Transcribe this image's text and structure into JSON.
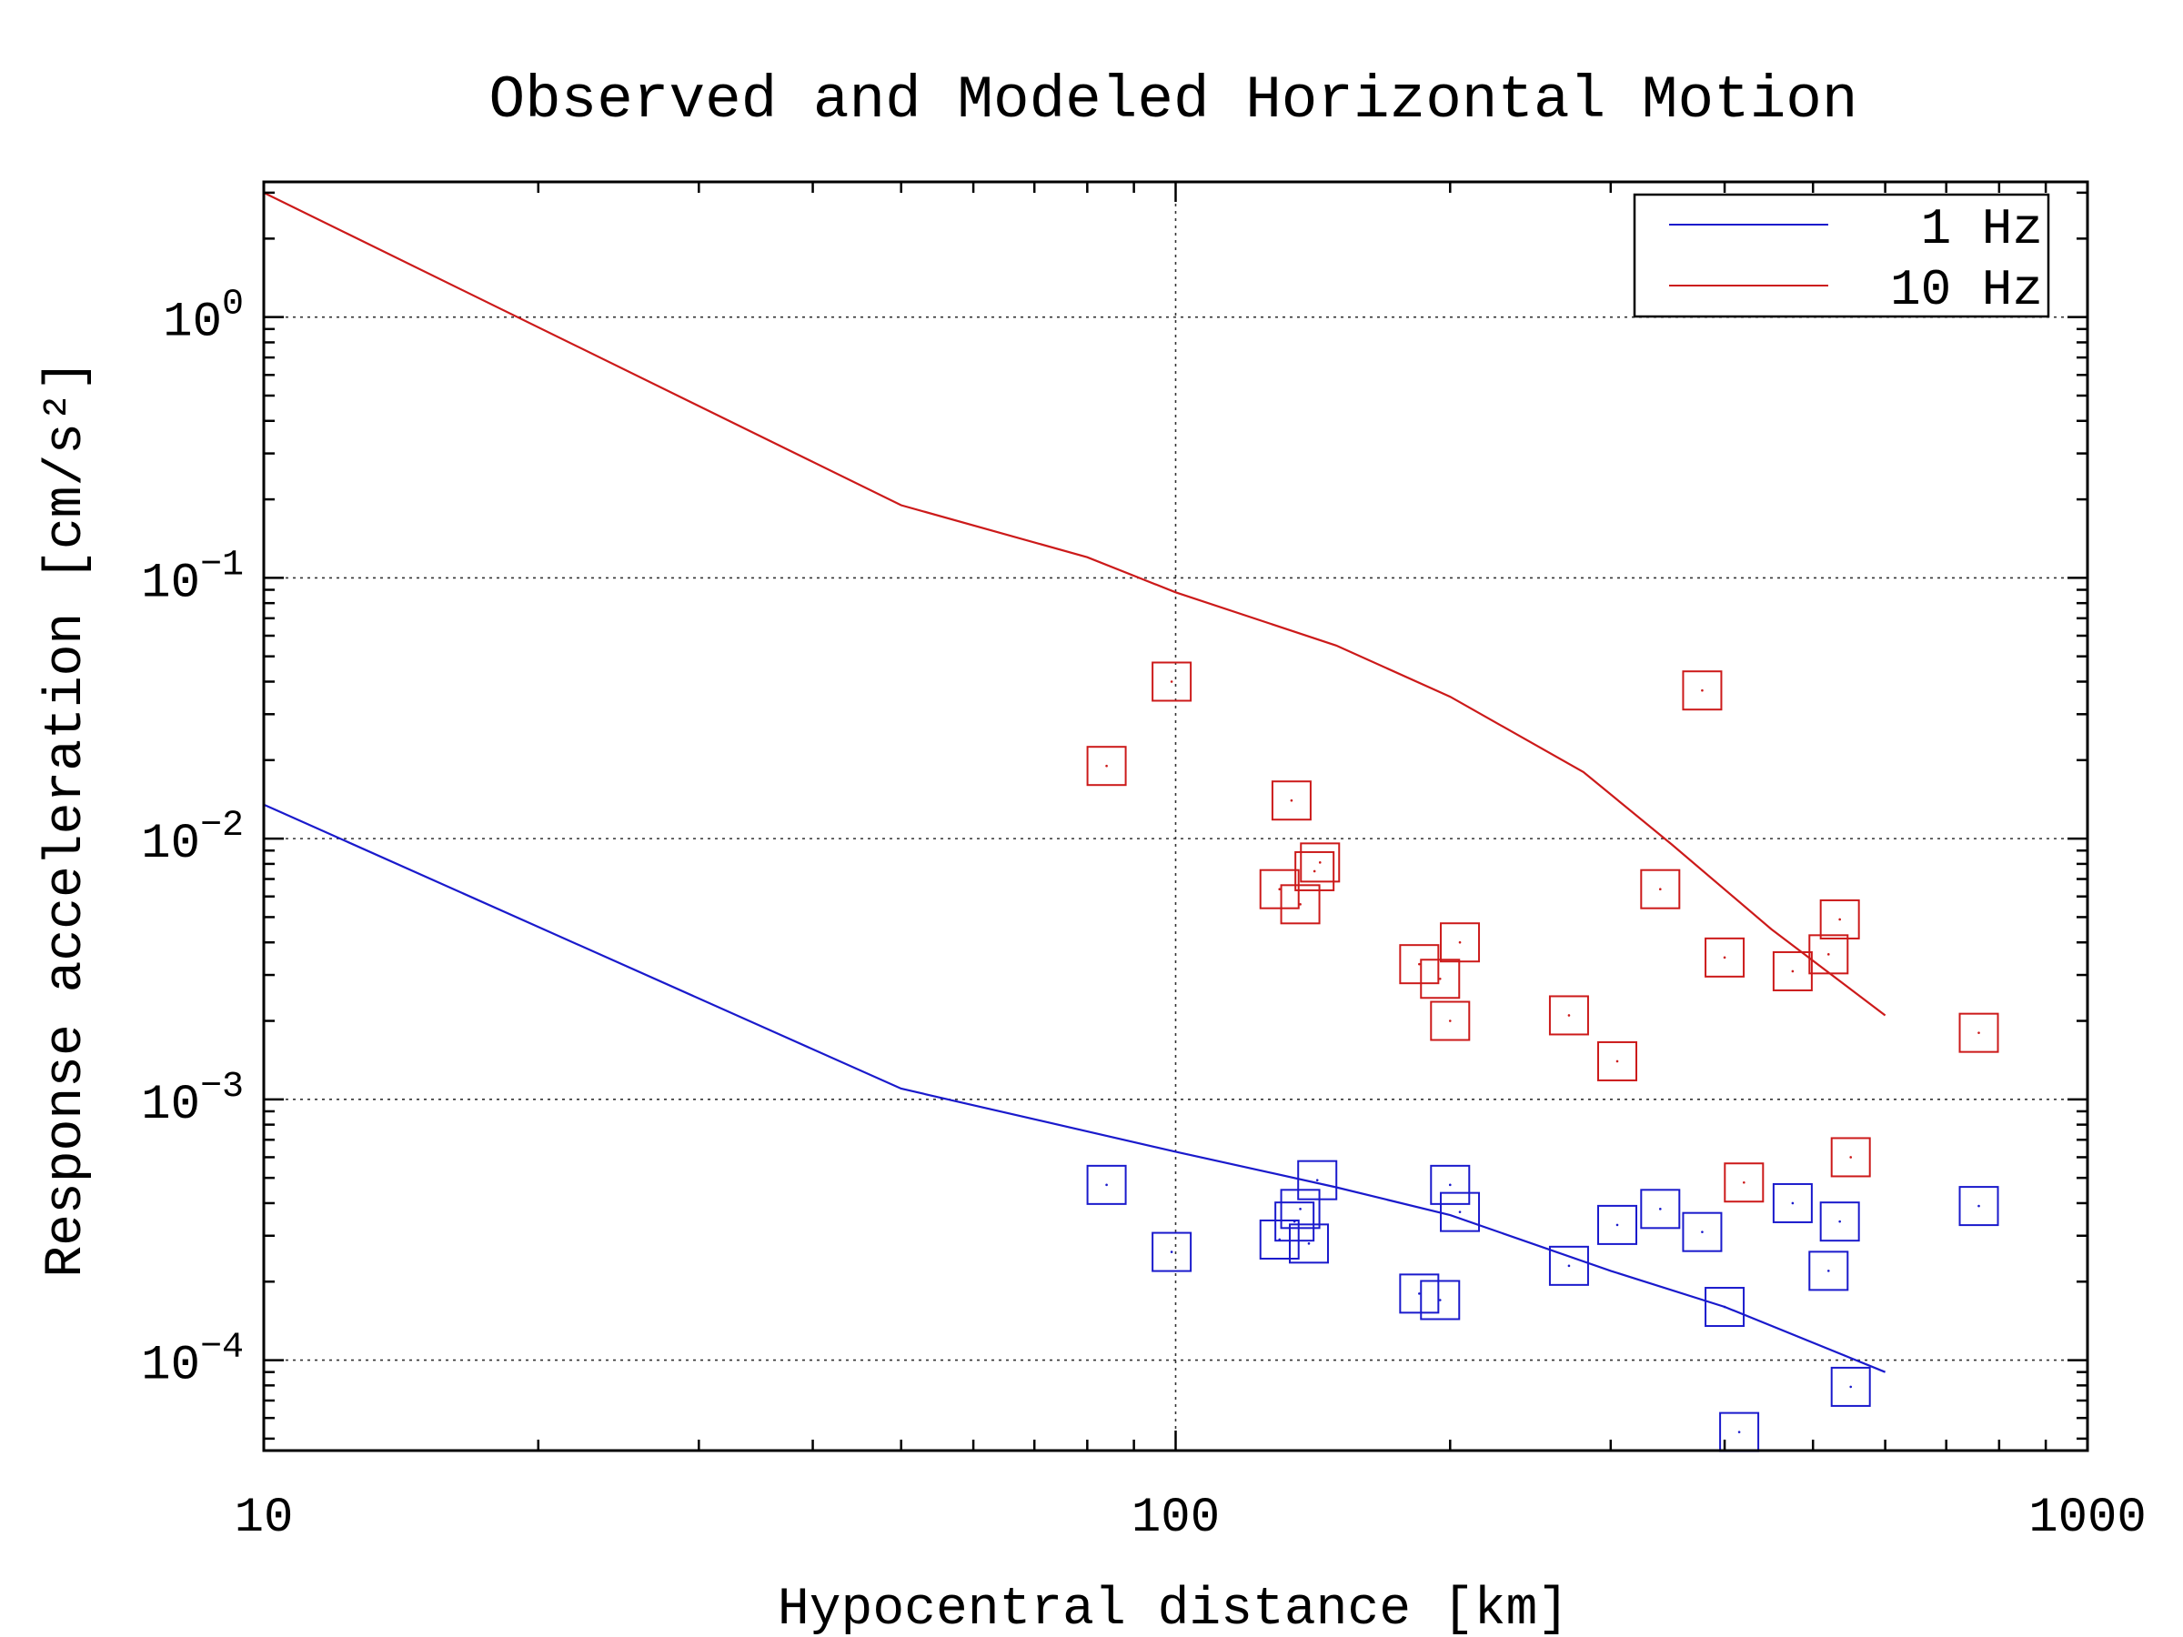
{
  "chart_data": {
    "type": "scatter",
    "title": "Observed and Modeled Horizontal Motion",
    "xlabel": "Hypocentral distance [km]",
    "ylabel": "Response acceleration [cm/s²]",
    "xscale": "log",
    "yscale": "log",
    "xlim": [
      10,
      1000
    ],
    "ylim": [
      4.5e-05,
      3.3
    ],
    "grid": true,
    "legend_position": "top-right",
    "x_ticks": [
      {
        "value": 10,
        "label": "10"
      },
      {
        "value": 100,
        "label": "100"
      },
      {
        "value": 1000,
        "label": "1000"
      }
    ],
    "y_ticks": [
      {
        "value": 1,
        "base": "10",
        "exp": "0"
      },
      {
        "value": 0.1,
        "base": "10",
        "exp": "−1"
      },
      {
        "value": 0.01,
        "base": "10",
        "exp": "−2"
      },
      {
        "value": 0.001,
        "base": "10",
        "exp": "−3"
      },
      {
        "value": 0.0001,
        "base": "10",
        "exp": "−4"
      }
    ],
    "series": [
      {
        "name": "1 Hz",
        "color": "#1a1acc",
        "model": [
          [
            10,
            0.0135
          ],
          [
            50,
            0.0011
          ],
          [
            100,
            0.00063
          ],
          [
            150,
            0.00046
          ],
          [
            200,
            0.00036
          ],
          [
            300,
            0.00022
          ],
          [
            400,
            0.00016
          ],
          [
            600,
            9e-05
          ]
        ],
        "observed": [
          [
            84,
            0.00047
          ],
          [
            99,
            0.00026
          ],
          [
            130,
            0.00029
          ],
          [
            135,
            0.00034
          ],
          [
            137,
            0.00038
          ],
          [
            140,
            0.00028
          ],
          [
            143,
            0.00049
          ],
          [
            185,
            0.00018
          ],
          [
            195,
            0.00017
          ],
          [
            200,
            0.00047
          ],
          [
            205,
            0.00037
          ],
          [
            270,
            0.00023
          ],
          [
            305,
            0.00033
          ],
          [
            340,
            0.00038
          ],
          [
            378,
            0.00031
          ],
          [
            400,
            0.00016
          ],
          [
            415,
            5.3e-05
          ],
          [
            475,
            0.0004
          ],
          [
            520,
            0.00022
          ],
          [
            535,
            0.00034
          ],
          [
            550,
            7.9e-05
          ],
          [
            760,
            0.00039
          ]
        ]
      },
      {
        "name": "10 Hz",
        "color": "#cc1a1a",
        "model": [
          [
            10,
            3.0
          ],
          [
            50,
            0.19
          ],
          [
            80,
            0.12
          ],
          [
            100,
            0.088
          ],
          [
            150,
            0.055
          ],
          [
            200,
            0.035
          ],
          [
            280,
            0.018
          ],
          [
            350,
            0.0095
          ],
          [
            450,
            0.0045
          ],
          [
            600,
            0.0021
          ]
        ],
        "observed": [
          [
            84,
            0.019
          ],
          [
            99,
            0.04
          ],
          [
            130,
            0.0064
          ],
          [
            134,
            0.014
          ],
          [
            137,
            0.0056
          ],
          [
            142,
            0.0075
          ],
          [
            144,
            0.0081
          ],
          [
            185,
            0.0033
          ],
          [
            195,
            0.0029
          ],
          [
            200,
            0.002
          ],
          [
            205,
            0.004
          ],
          [
            270,
            0.0021
          ],
          [
            305,
            0.0014
          ],
          [
            340,
            0.0064
          ],
          [
            378,
            0.037
          ],
          [
            400,
            0.0035
          ],
          [
            420,
            0.00048
          ],
          [
            475,
            0.0031
          ],
          [
            520,
            0.0036
          ],
          [
            535,
            0.0049
          ],
          [
            550,
            0.0006
          ],
          [
            760,
            0.0018
          ]
        ]
      }
    ]
  }
}
